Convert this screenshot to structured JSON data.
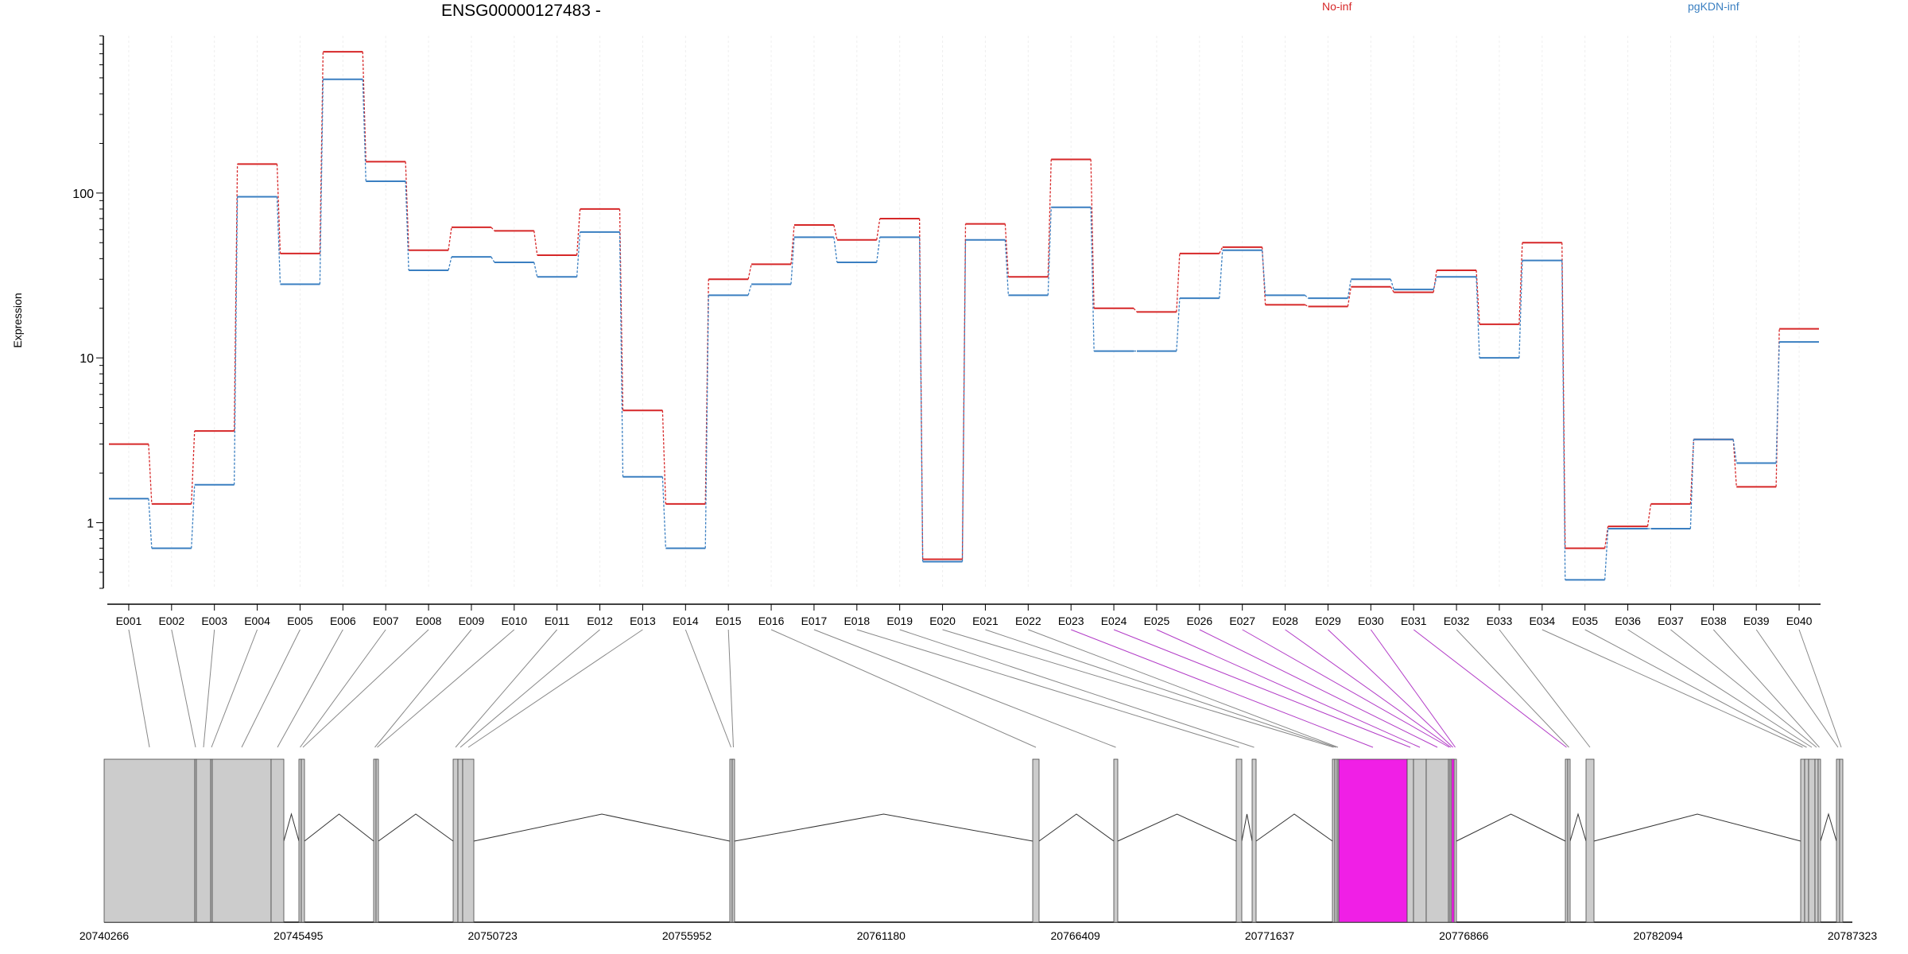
{
  "chart_data": {
    "type": "line",
    "title": "ENSG00000127483 -",
    "ylabel": "Expression",
    "yscale": "log",
    "ylim": [
      0.4,
      900
    ],
    "yticks": [
      {
        "value": 1,
        "label": "1"
      },
      {
        "value": 10,
        "label": "10"
      },
      {
        "value": 100,
        "label": "100"
      }
    ],
    "categories": [
      "E001",
      "E002",
      "E003",
      "E004",
      "E005",
      "E006",
      "E007",
      "E008",
      "E009",
      "E010",
      "E011",
      "E012",
      "E013",
      "E014",
      "E015",
      "E016",
      "E017",
      "E018",
      "E019",
      "E020",
      "E021",
      "E022",
      "E023",
      "E024",
      "E025",
      "E026",
      "E027",
      "E028",
      "E029",
      "E030",
      "E031",
      "E032",
      "E033",
      "E034",
      "E035",
      "E036",
      "E037",
      "E038",
      "E039",
      "E040"
    ],
    "series": [
      {
        "name": "No-inf",
        "color": "#d62728",
        "values": [
          3.0,
          1.3,
          3.6,
          150,
          43,
          720,
          155,
          45,
          62,
          59,
          42,
          80,
          4.8,
          1.3,
          30,
          37,
          64,
          52,
          70,
          0.6,
          65,
          31,
          160,
          20,
          19,
          43,
          47,
          21,
          20.5,
          27,
          25,
          34,
          16,
          50,
          0.7,
          0.95,
          1.3,
          3.2,
          1.65,
          15
        ]
      },
      {
        "name": "pgKDN-inf",
        "color": "#3a7fc1",
        "values": [
          1.4,
          0.7,
          1.7,
          95,
          28,
          490,
          118,
          34,
          41,
          38,
          31,
          58,
          1.9,
          0.7,
          24,
          28,
          54,
          38,
          54,
          0.58,
          52,
          24,
          82,
          11,
          11,
          23,
          45,
          24,
          23,
          30,
          26,
          31,
          10,
          39,
          0.45,
          0.92,
          0.92,
          3.2,
          2.3,
          12.5
        ]
      }
    ],
    "legend": "top",
    "grid": "vertical",
    "gene_model": {
      "axis_ticks": [
        "20740266",
        "20745495",
        "20750723",
        "20755952",
        "20761180",
        "20766409",
        "20771637",
        "20776866",
        "20782094",
        "20787323"
      ],
      "start": 20740266,
      "end": 20787323,
      "highlight_color": "#f01fe6",
      "highlighted_exons": [
        "E023",
        "E024",
        "E025",
        "E026",
        "E027",
        "E028",
        "E029",
        "E030",
        "E031"
      ],
      "exon_color": "#cccccc"
    }
  }
}
